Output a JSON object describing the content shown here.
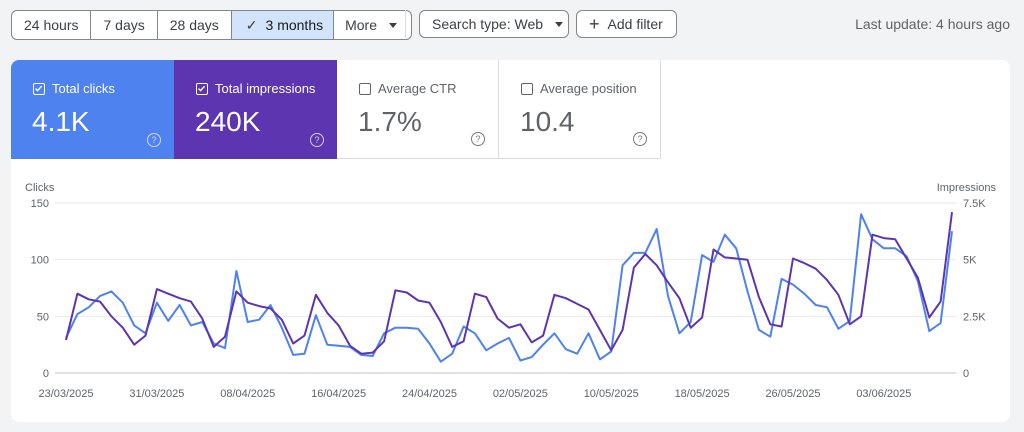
{
  "toolbar": {
    "ranges": [
      "24 hours",
      "7 days",
      "28 days",
      "3 months"
    ],
    "active_range": "3 months",
    "more_label": "More",
    "search_type_label": "Search type: Web",
    "add_filter_label": "Add filter",
    "last_update": "Last update: 4 hours ago"
  },
  "metrics": {
    "total_clicks": {
      "label": "Total clicks",
      "value": "4.1K",
      "checked": true,
      "color": "#4e82ef"
    },
    "total_impressions": {
      "label": "Total impressions",
      "value": "240K",
      "checked": true,
      "color": "#5e35b1"
    },
    "average_ctr": {
      "label": "Average CTR",
      "value": "1.7%",
      "checked": false
    },
    "average_position": {
      "label": "Average position",
      "value": "10.4",
      "checked": false
    }
  },
  "chart_data": {
    "type": "line",
    "left_axis_label": "Clicks",
    "right_axis_label": "Impressions",
    "left_ticks": [
      "0",
      "50",
      "100",
      "150"
    ],
    "right_ticks": [
      "0",
      "2.5K",
      "5K",
      "7.5K"
    ],
    "ylim_left": [
      0,
      150
    ],
    "ylim_right": [
      0,
      7500
    ],
    "x_tick_labels": [
      "23/03/2025",
      "31/03/2025",
      "08/04/2025",
      "16/04/2025",
      "24/04/2025",
      "02/05/2025",
      "10/05/2025",
      "18/05/2025",
      "26/05/2025",
      "03/06/2025"
    ],
    "x_range": [
      "23/03/2025",
      "11/06/2025"
    ],
    "grid": true,
    "series": [
      {
        "name": "Clicks",
        "axis": "left",
        "color": "#4e82ef",
        "values": [
          31,
          52,
          58,
          68,
          72,
          62,
          42,
          35,
          62,
          46,
          60,
          42,
          45,
          26,
          22,
          90,
          45,
          47,
          60,
          40,
          16,
          17,
          51,
          25,
          24,
          23,
          16,
          15,
          35,
          40,
          40,
          39,
          26,
          10,
          17,
          41,
          35,
          20,
          26,
          31,
          11,
          14,
          25,
          35,
          21,
          17,
          35,
          12,
          19,
          95,
          106,
          106,
          127,
          68,
          35,
          45,
          104,
          98,
          122,
          110,
          72,
          38,
          32,
          83,
          78,
          70,
          60,
          58,
          39,
          46,
          140,
          118,
          110,
          110,
          103,
          81,
          37,
          44,
          125
        ]
      },
      {
        "name": "Impressions",
        "axis": "right",
        "color": "#5e35b1",
        "values": [
          1450,
          3500,
          3250,
          3150,
          2500,
          2000,
          1250,
          1650,
          3700,
          3500,
          3300,
          3150,
          2400,
          1150,
          1600,
          3600,
          3100,
          2950,
          2850,
          2350,
          1300,
          1650,
          3450,
          2650,
          2100,
          1200,
          850,
          900,
          1400,
          3650,
          3550,
          3200,
          3100,
          2250,
          1150,
          1400,
          3500,
          3350,
          2400,
          2000,
          2150,
          1350,
          1650,
          3450,
          3300,
          3050,
          2800,
          1900,
          1000,
          1900,
          4650,
          5250,
          4750,
          4000,
          3300,
          2000,
          2450,
          5450,
          5100,
          5050,
          5000,
          3350,
          2150,
          2050,
          5050,
          4850,
          4600,
          4100,
          3450,
          2150,
          2500,
          6100,
          5950,
          5900,
          5050,
          4200,
          2450,
          3150,
          7100
        ]
      }
    ]
  }
}
